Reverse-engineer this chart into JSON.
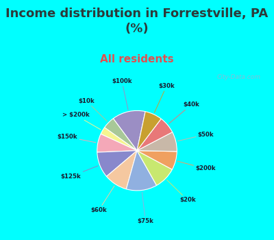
{
  "title": "Income distribution in Forrestville, PA\n(%)",
  "subtitle": "All residents",
  "title_color": "#2d3a3a",
  "subtitle_color": "#e05050",
  "bg_cyan": "#00FFFF",
  "bg_chart": "#e0f0e8",
  "watermark": "City-Data.com",
  "labels": [
    "$100k",
    "$10k",
    "> $200k",
    "$150k",
    "$125k",
    "$60k",
    "$75k",
    "$20k",
    "$200k",
    "$50k",
    "$40k",
    "$30k"
  ],
  "values": [
    13.5,
    5.0,
    3.0,
    7.5,
    10.5,
    9.5,
    12.5,
    9.0,
    7.5,
    8.0,
    7.0,
    7.0
  ],
  "colors": [
    "#9b8ec4",
    "#a8c898",
    "#f5f590",
    "#f4a8b8",
    "#8888cc",
    "#f5c8a0",
    "#90b0e0",
    "#c8e870",
    "#f0a060",
    "#c8b8a8",
    "#e87878",
    "#c8a030"
  ],
  "startangle": 78,
  "title_fontsize": 13,
  "subtitle_fontsize": 11
}
